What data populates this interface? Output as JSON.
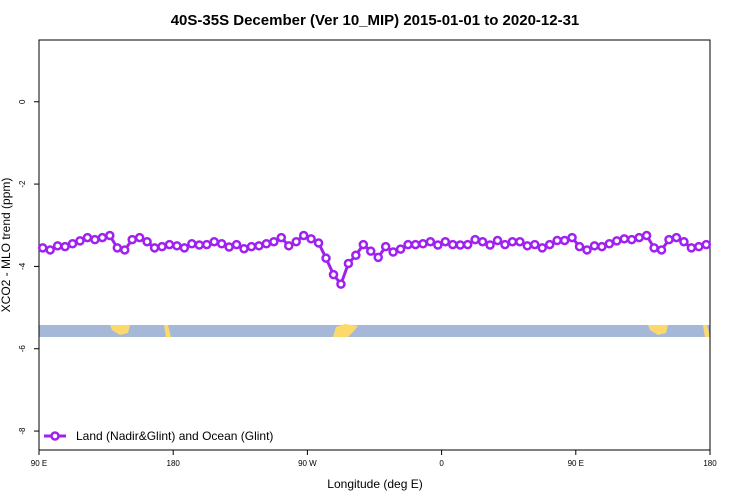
{
  "chart_data": {
    "type": "line",
    "title": "40S-35S December (Ver 10_MIP)   2015-01-01 to 2020-12-31",
    "xlabel": "Longitude (deg E)",
    "ylabel": "XCO2 - MLO trend (ppm)",
    "xlim": [
      90,
      540
    ],
    "ylim": [
      -8.46,
      1.5
    ],
    "xticks": [
      {
        "value": 90,
        "label": "90 E"
      },
      {
        "value": 180,
        "label": "180"
      },
      {
        "value": 270,
        "label": "90 W"
      },
      {
        "value": 360,
        "label": "0"
      },
      {
        "value": 450,
        "label": "90 E"
      },
      {
        "value": 540,
        "label": "180"
      }
    ],
    "yticks": [
      -8,
      -6,
      -4,
      -2,
      0
    ],
    "legend": "lower left",
    "x": [
      92.5,
      97.5,
      102.5,
      107.5,
      112.5,
      117.5,
      122.5,
      127.5,
      132.5,
      137.5,
      142.5,
      147.5,
      152.5,
      157.5,
      162.5,
      167.5,
      172.5,
      177.5,
      182.5,
      187.5,
      192.5,
      197.5,
      202.5,
      207.5,
      212.5,
      217.5,
      222.5,
      227.5,
      232.5,
      237.5,
      242.5,
      247.5,
      252.5,
      257.5,
      262.5,
      267.5,
      272.5,
      277.5,
      282.5,
      287.5,
      292.5,
      297.5,
      302.5,
      307.5,
      312.5,
      317.5,
      322.5,
      327.5,
      332.5,
      337.5,
      342.5,
      347.5,
      352.5,
      357.5,
      362.5,
      367.5,
      372.5,
      377.5,
      382.5,
      387.5,
      392.5,
      397.5,
      402.5,
      407.5,
      412.5,
      417.5,
      422.5,
      427.5,
      432.5,
      437.5,
      442.5,
      447.5,
      452.5,
      457.5,
      462.5,
      467.5,
      472.5,
      477.5,
      482.5,
      487.5,
      492.5,
      497.5,
      502.5,
      507.5,
      512.5,
      517.5,
      522.5,
      527.5,
      532.5,
      537.5
    ],
    "series": [
      {
        "name": "Land (Nadir&Glint) and Ocean (Glint)",
        "color": "#a020f0",
        "values": [
          -3.55,
          -3.6,
          -3.5,
          -3.52,
          -3.45,
          -3.38,
          -3.3,
          -3.35,
          -3.3,
          -3.25,
          -3.55,
          -3.6,
          -3.35,
          -3.3,
          -3.4,
          -3.55,
          -3.52,
          -3.47,
          -3.5,
          -3.55,
          -3.45,
          -3.48,
          -3.47,
          -3.4,
          -3.45,
          -3.53,
          -3.47,
          -3.57,
          -3.52,
          -3.5,
          -3.45,
          -3.4,
          -3.3,
          -3.5,
          -3.4,
          -3.25,
          -3.33,
          -3.43,
          -3.8,
          -4.2,
          -4.43,
          -3.93,
          -3.73,
          -3.47,
          -3.63,
          -3.78,
          -3.52,
          -3.65,
          -3.58,
          -3.47,
          -3.47,
          -3.45,
          -3.4,
          -3.48,
          -3.4,
          -3.47,
          -3.48,
          -3.47,
          -3.35,
          -3.4,
          -3.48,
          -3.37,
          -3.47,
          -3.4,
          -3.4,
          -3.5,
          -3.47,
          -3.55,
          -3.47,
          -3.37,
          -3.37,
          -3.3,
          -3.52,
          -3.6,
          -3.5,
          -3.52,
          -3.45,
          -3.38,
          -3.33,
          -3.35,
          -3.3,
          -3.25,
          -3.55,
          -3.6,
          -3.35,
          -3.3,
          -3.4,
          -3.55,
          -3.52,
          -3.47
        ]
      }
    ]
  }
}
